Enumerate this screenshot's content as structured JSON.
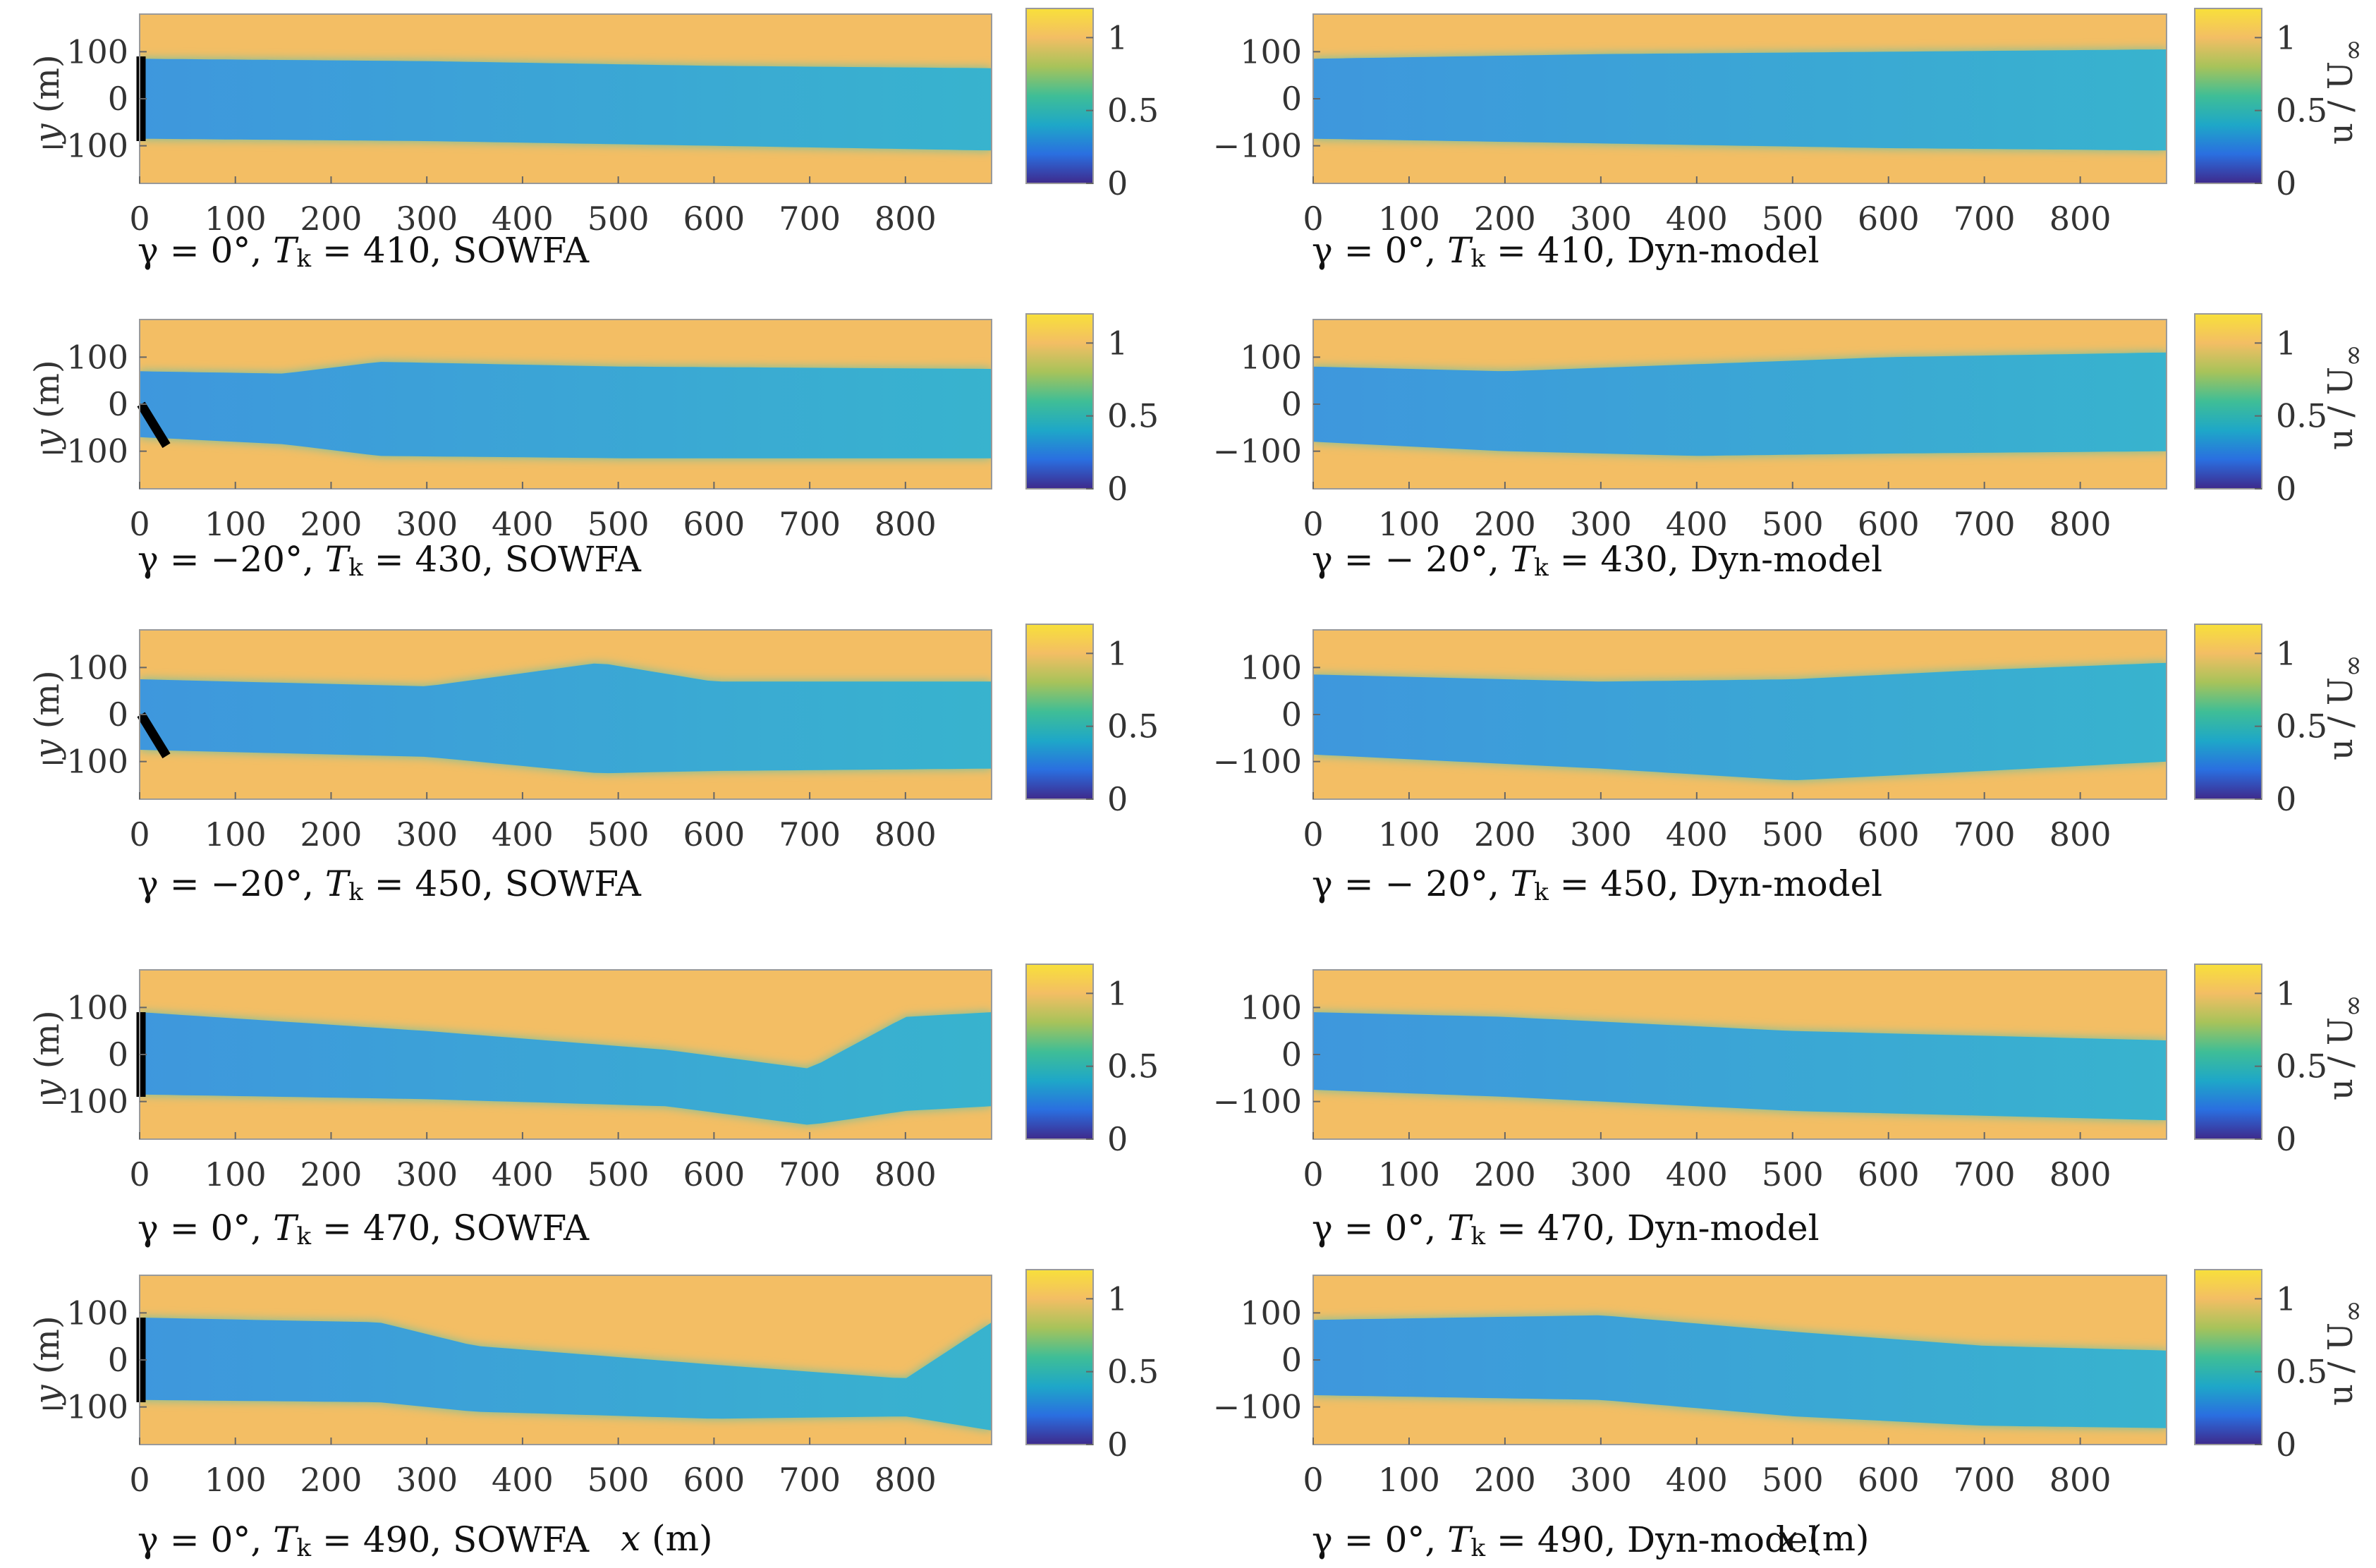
{
  "figure": {
    "y_axis_label_italic": "y",
    "y_axis_label_unit": " (m)",
    "x_axis_label_italic": "x",
    "x_axis_label_unit": " (m)",
    "colorbar_label": "u / U",
    "colorbar_label_sub": "∞"
  },
  "chart_data": [
    {
      "type": "heatmap",
      "panel": "r1-left",
      "model": "SOWFA",
      "yaw_deg": 0,
      "Tk": 410,
      "caption": {
        "yaw": "γ = 0°, ",
        "tk": "T",
        "tk_sub": "k",
        "rest": " = 410, SOWFA"
      },
      "xlim": [
        0,
        890
      ],
      "ylim": [
        -180,
        180
      ],
      "x_ticks": [
        0,
        100,
        200,
        300,
        400,
        500,
        600,
        700,
        800
      ],
      "y_ticks": [
        100,
        0,
        -100
      ],
      "x_tick_labels": [
        "0",
        "100",
        "200",
        "300",
        "400",
        "500",
        "600",
        "700",
        "800"
      ],
      "y_tick_labels": [
        "100",
        "0",
        "−100"
      ],
      "clim": [
        0,
        1.2
      ],
      "cbar_ticks": [
        "1",
        "0.5",
        "0"
      ],
      "wake": {
        "upper_edge": [
          [
            0,
            85
          ],
          [
            300,
            80
          ],
          [
            600,
            70
          ],
          [
            890,
            65
          ]
        ],
        "lower_edge": [
          [
            0,
            -85
          ],
          [
            300,
            -90
          ],
          [
            600,
            -100
          ],
          [
            890,
            -110
          ]
        ]
      },
      "turbine_angle_deg": 0
    },
    {
      "type": "heatmap",
      "panel": "r1-right",
      "model": "Dyn-model",
      "yaw_deg": 0,
      "Tk": 410,
      "caption": {
        "yaw": "γ = 0°, ",
        "tk": "T",
        "tk_sub": "k",
        "rest": " = 410, Dyn-model"
      },
      "xlim": [
        0,
        890
      ],
      "ylim": [
        -180,
        180
      ],
      "x_ticks": [
        0,
        100,
        200,
        300,
        400,
        500,
        600,
        700,
        800
      ],
      "y_ticks": [
        100,
        0,
        -100
      ],
      "x_tick_labels": [
        "0",
        "100",
        "200",
        "300",
        "400",
        "500",
        "600",
        "700",
        "800"
      ],
      "y_tick_labels": [
        "100",
        "0",
        "−100"
      ],
      "clim": [
        0,
        1.2
      ],
      "cbar_ticks": [
        "1",
        "0.5",
        "0"
      ],
      "wake": {
        "upper_edge": [
          [
            0,
            85
          ],
          [
            300,
            95
          ],
          [
            600,
            100
          ],
          [
            890,
            105
          ]
        ],
        "lower_edge": [
          [
            0,
            -85
          ],
          [
            300,
            -95
          ],
          [
            600,
            -105
          ],
          [
            890,
            -110
          ]
        ]
      }
    },
    {
      "type": "heatmap",
      "panel": "r2-left",
      "model": "SOWFA",
      "yaw_deg": -20,
      "Tk": 430,
      "caption": {
        "yaw": "γ = −20°, ",
        "tk": "T",
        "tk_sub": "k",
        "rest": " = 430, SOWFA"
      },
      "xlim": [
        0,
        890
      ],
      "ylim": [
        -180,
        180
      ],
      "x_ticks": [
        0,
        100,
        200,
        300,
        400,
        500,
        600,
        700,
        800
      ],
      "y_ticks": [
        100,
        0,
        -100
      ],
      "x_tick_labels": [
        "0",
        "100",
        "200",
        "300",
        "400",
        "500",
        "600",
        "700",
        "800"
      ],
      "y_tick_labels": [
        "100",
        "0",
        "−100"
      ],
      "clim": [
        0,
        1.2
      ],
      "cbar_ticks": [
        "1",
        "0.5",
        "0"
      ],
      "wake": {
        "upper_edge": [
          [
            0,
            70
          ],
          [
            150,
            65
          ],
          [
            250,
            90
          ],
          [
            500,
            80
          ],
          [
            890,
            75
          ]
        ],
        "lower_edge": [
          [
            0,
            -70
          ],
          [
            150,
            -85
          ],
          [
            250,
            -110
          ],
          [
            500,
            -115
          ],
          [
            890,
            -115
          ]
        ]
      },
      "turbine_angle_deg": -20
    },
    {
      "type": "heatmap",
      "panel": "r2-right",
      "model": "Dyn-model",
      "yaw_deg": -20,
      "Tk": 430,
      "caption": {
        "yaw": "γ = − 20°, ",
        "tk": "T",
        "tk_sub": "k",
        "rest": " = 430, Dyn-model"
      },
      "xlim": [
        0,
        890
      ],
      "ylim": [
        -180,
        180
      ],
      "x_ticks": [
        0,
        100,
        200,
        300,
        400,
        500,
        600,
        700,
        800
      ],
      "y_ticks": [
        100,
        0,
        -100
      ],
      "x_tick_labels": [
        "0",
        "100",
        "200",
        "300",
        "400",
        "500",
        "600",
        "700",
        "800"
      ],
      "y_tick_labels": [
        "100",
        "0",
        "−100"
      ],
      "clim": [
        0,
        1.2
      ],
      "cbar_ticks": [
        "1",
        "0.5",
        "0"
      ],
      "wake": {
        "upper_edge": [
          [
            0,
            80
          ],
          [
            200,
            70
          ],
          [
            400,
            85
          ],
          [
            600,
            100
          ],
          [
            890,
            110
          ]
        ],
        "lower_edge": [
          [
            0,
            -80
          ],
          [
            200,
            -100
          ],
          [
            400,
            -110
          ],
          [
            600,
            -105
          ],
          [
            890,
            -100
          ]
        ]
      }
    },
    {
      "type": "heatmap",
      "panel": "r3-left",
      "model": "SOWFA",
      "yaw_deg": -20,
      "Tk": 450,
      "caption": {
        "yaw": "γ = −20°, ",
        "tk": "T",
        "tk_sub": "k",
        "rest": " = 450, SOWFA"
      },
      "xlim": [
        0,
        890
      ],
      "ylim": [
        -180,
        180
      ],
      "x_ticks": [
        0,
        100,
        200,
        300,
        400,
        500,
        600,
        700,
        800
      ],
      "y_ticks": [
        100,
        0,
        -100
      ],
      "x_tick_labels": [
        "0",
        "100",
        "200",
        "300",
        "400",
        "500",
        "600",
        "700",
        "800"
      ],
      "y_tick_labels": [
        "100",
        "0",
        "−100"
      ],
      "clim": [
        0,
        1.2
      ],
      "cbar_ticks": [
        "1",
        "0.5",
        "0"
      ],
      "wake": {
        "upper_edge": [
          [
            0,
            75
          ],
          [
            300,
            60
          ],
          [
            480,
            110
          ],
          [
            600,
            70
          ],
          [
            890,
            70
          ]
        ],
        "lower_edge": [
          [
            0,
            -75
          ],
          [
            300,
            -90
          ],
          [
            480,
            -125
          ],
          [
            600,
            -120
          ],
          [
            890,
            -115
          ]
        ]
      },
      "turbine_angle_deg": -20
    },
    {
      "type": "heatmap",
      "panel": "r3-right",
      "model": "Dyn-model",
      "yaw_deg": -20,
      "Tk": 450,
      "caption": {
        "yaw": "γ = − 20°, ",
        "tk": "T",
        "tk_sub": "k",
        "rest": " = 450, Dyn-model"
      },
      "xlim": [
        0,
        890
      ],
      "ylim": [
        -180,
        180
      ],
      "x_ticks": [
        0,
        100,
        200,
        300,
        400,
        500,
        600,
        700,
        800
      ],
      "y_ticks": [
        100,
        0,
        -100
      ],
      "x_tick_labels": [
        "0",
        "100",
        "200",
        "300",
        "400",
        "500",
        "600",
        "700",
        "800"
      ],
      "y_tick_labels": [
        "100",
        "0",
        "−100"
      ],
      "clim": [
        0,
        1.2
      ],
      "cbar_ticks": [
        "1",
        "0.5",
        "0"
      ],
      "wake": {
        "upper_edge": [
          [
            0,
            85
          ],
          [
            300,
            70
          ],
          [
            500,
            75
          ],
          [
            700,
            95
          ],
          [
            890,
            110
          ]
        ],
        "lower_edge": [
          [
            0,
            -85
          ],
          [
            300,
            -115
          ],
          [
            500,
            -140
          ],
          [
            700,
            -120
          ],
          [
            890,
            -100
          ]
        ]
      }
    },
    {
      "type": "heatmap",
      "panel": "r4-left",
      "model": "SOWFA",
      "yaw_deg": 0,
      "Tk": 470,
      "caption": {
        "yaw": "γ = 0°, ",
        "tk": "T",
        "tk_sub": "k",
        "rest": " = 470, SOWFA"
      },
      "xlim": [
        0,
        890
      ],
      "ylim": [
        -180,
        180
      ],
      "x_ticks": [
        0,
        100,
        200,
        300,
        400,
        500,
        600,
        700,
        800
      ],
      "y_ticks": [
        100,
        0,
        -100
      ],
      "x_tick_labels": [
        "0",
        "100",
        "200",
        "300",
        "400",
        "500",
        "600",
        "700",
        "800"
      ],
      "y_tick_labels": [
        "100",
        "0",
        "−100"
      ],
      "clim": [
        0,
        1.2
      ],
      "cbar_ticks": [
        "1",
        "0.5",
        "0"
      ],
      "wake": {
        "upper_edge": [
          [
            0,
            90
          ],
          [
            300,
            50
          ],
          [
            550,
            10
          ],
          [
            700,
            -30
          ],
          [
            800,
            80
          ],
          [
            890,
            90
          ]
        ],
        "lower_edge": [
          [
            0,
            -85
          ],
          [
            300,
            -95
          ],
          [
            550,
            -110
          ],
          [
            700,
            -150
          ],
          [
            800,
            -120
          ],
          [
            890,
            -110
          ]
        ]
      },
      "turbine_angle_deg": 0
    },
    {
      "type": "heatmap",
      "panel": "r4-right",
      "model": "Dyn-model",
      "yaw_deg": 0,
      "Tk": 470,
      "caption": {
        "yaw": "γ = 0°, ",
        "tk": "T",
        "tk_sub": "k",
        "rest": " = 470, Dyn-model"
      },
      "xlim": [
        0,
        890
      ],
      "ylim": [
        -180,
        180
      ],
      "x_ticks": [
        0,
        100,
        200,
        300,
        400,
        500,
        600,
        700,
        800
      ],
      "y_ticks": [
        100,
        0,
        -100
      ],
      "x_tick_labels": [
        "0",
        "100",
        "200",
        "300",
        "400",
        "500",
        "600",
        "700",
        "800"
      ],
      "y_tick_labels": [
        "100",
        "0",
        "−100"
      ],
      "clim": [
        0,
        1.2
      ],
      "cbar_ticks": [
        "1",
        "0.5",
        "0"
      ],
      "wake": {
        "upper_edge": [
          [
            0,
            90
          ],
          [
            200,
            80
          ],
          [
            500,
            50
          ],
          [
            890,
            30
          ]
        ],
        "lower_edge": [
          [
            0,
            -75
          ],
          [
            200,
            -90
          ],
          [
            500,
            -120
          ],
          [
            890,
            -140
          ]
        ]
      }
    },
    {
      "type": "heatmap",
      "panel": "r5-left",
      "model": "SOWFA",
      "yaw_deg": 0,
      "Tk": 490,
      "caption": {
        "yaw": "γ = 0°, ",
        "tk": "T",
        "tk_sub": "k",
        "rest": " = 490, SOWFA"
      },
      "xlim": [
        0,
        890
      ],
      "ylim": [
        -180,
        180
      ],
      "x_ticks": [
        0,
        100,
        200,
        300,
        400,
        500,
        600,
        700,
        800
      ],
      "y_ticks": [
        100,
        0,
        -100
      ],
      "x_tick_labels": [
        "0",
        "100",
        "200",
        "300",
        "400",
        "500",
        "600",
        "700",
        "800"
      ],
      "y_tick_labels": [
        "100",
        "0",
        "−100"
      ],
      "clim": [
        0,
        1.2
      ],
      "cbar_ticks": [
        "1",
        "0.5",
        "0"
      ],
      "wake": {
        "upper_edge": [
          [
            0,
            90
          ],
          [
            250,
            80
          ],
          [
            350,
            30
          ],
          [
            600,
            -10
          ],
          [
            800,
            -40
          ],
          [
            890,
            80
          ]
        ],
        "lower_edge": [
          [
            0,
            -85
          ],
          [
            250,
            -90
          ],
          [
            350,
            -110
          ],
          [
            600,
            -125
          ],
          [
            800,
            -120
          ],
          [
            890,
            -150
          ]
        ]
      },
      "turbine_angle_deg": 0
    },
    {
      "type": "heatmap",
      "panel": "r5-right",
      "model": "Dyn-model",
      "yaw_deg": 0,
      "Tk": 490,
      "caption": {
        "yaw": "γ = 0°, ",
        "tk": "T",
        "tk_sub": "k",
        "rest": " = 490, Dyn-model"
      },
      "xlim": [
        0,
        890
      ],
      "ylim": [
        -180,
        180
      ],
      "x_ticks": [
        0,
        100,
        200,
        300,
        400,
        500,
        600,
        700,
        800
      ],
      "y_ticks": [
        100,
        0,
        -100
      ],
      "x_tick_labels": [
        "0",
        "100",
        "200",
        "300",
        "400",
        "500",
        "600",
        "700",
        "800"
      ],
      "y_tick_labels": [
        "100",
        "0",
        "−100"
      ],
      "clim": [
        0,
        1.2
      ],
      "cbar_ticks": [
        "1",
        "0.5",
        "0"
      ],
      "wake": {
        "upper_edge": [
          [
            0,
            85
          ],
          [
            300,
            95
          ],
          [
            500,
            60
          ],
          [
            700,
            30
          ],
          [
            890,
            20
          ]
        ],
        "lower_edge": [
          [
            0,
            -75
          ],
          [
            300,
            -85
          ],
          [
            500,
            -120
          ],
          [
            700,
            -140
          ],
          [
            890,
            -145
          ]
        ]
      }
    }
  ],
  "colors": {
    "freestream": "#F3BE64",
    "wake_core": "#3E97DD",
    "wake_far": "#38B3CE",
    "wake_edge": "#6FC0A0",
    "colormap": [
      "#3E2A8C",
      "#2A6FE0",
      "#1EA7C8",
      "#3FBE96",
      "#A7C35A",
      "#F3BE64",
      "#F8E03A"
    ]
  }
}
